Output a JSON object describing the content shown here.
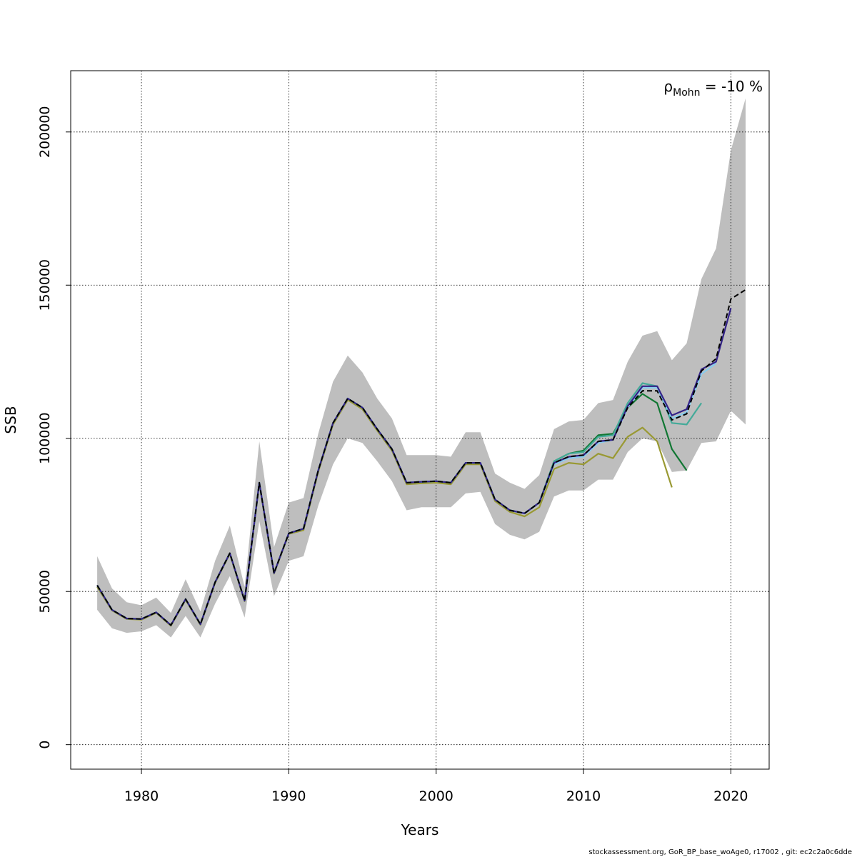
{
  "chart_data": {
    "type": "line",
    "title": "",
    "xlabel": "Years",
    "ylabel": "SSB",
    "xlim": [
      1975.2,
      2022.6
    ],
    "ylim": [
      -8000,
      220000
    ],
    "x_ticks": [
      1980,
      1990,
      2000,
      2010,
      2020
    ],
    "y_ticks": [
      0,
      50000,
      100000,
      150000,
      200000
    ],
    "x_tick_labels": [
      "1980",
      "1990",
      "2000",
      "2010",
      "2020"
    ],
    "y_tick_labels": [
      "0",
      "50000",
      "100000",
      "150000",
      "200000"
    ],
    "grid": true,
    "legend": "none",
    "annotation": {
      "rho": "ρ",
      "sub": "Mohn",
      "value": " = -10 %"
    },
    "caption": "stockassessment.org, GoR_BP_base_woAge0, r17002 , git: ec2c2a0c6dde",
    "colors": {
      "band": "#bebebe",
      "base": "#000000",
      "peel1": "#332288",
      "peel2": "#88ccee",
      "peel3": "#44aa99",
      "peel4": "#117733",
      "peel5": "#999933"
    },
    "confidence_band": {
      "x": [
        1977,
        1978,
        1979,
        1980,
        1981,
        1982,
        1983,
        1984,
        1985,
        1986,
        1987,
        1988,
        1989,
        1990,
        1991,
        1992,
        1993,
        1994,
        1995,
        1996,
        1997,
        1998,
        1999,
        2000,
        2001,
        2002,
        2003,
        2004,
        2005,
        2006,
        2007,
        2008,
        2009,
        2010,
        2011,
        2012,
        2013,
        2014,
        2015,
        2016,
        2017,
        2018,
        2019,
        2020,
        2021
      ],
      "lower": [
        44000,
        38000,
        36500,
        37000,
        39000,
        35000,
        42000,
        35000,
        46000,
        55000,
        41500,
        73000,
        48500,
        60000,
        61500,
        78000,
        91500,
        100000,
        98500,
        92500,
        86000,
        76500,
        77500,
        77500,
        77500,
        82000,
        82500,
        72000,
        68500,
        67000,
        69500,
        81000,
        83000,
        83000,
        86500,
        86500,
        95500,
        100000,
        99000,
        89000,
        89500,
        98500,
        99000,
        109000,
        104500
      ],
      "upper": [
        61500,
        51000,
        46500,
        45500,
        48000,
        43000,
        54000,
        43500,
        60000,
        71500,
        51500,
        99000,
        64500,
        79000,
        80500,
        101500,
        118500,
        127000,
        121500,
        113000,
        106500,
        94500,
        94500,
        94500,
        94000,
        102000,
        102000,
        88500,
        85500,
        83500,
        88000,
        103000,
        105500,
        106000,
        111500,
        112500,
        125000,
        133500,
        135000,
        125500,
        131000,
        152000,
        162000,
        194000,
        211000
      ]
    },
    "series": [
      {
        "key": "base",
        "dashed": true,
        "x": [
          1977,
          1978,
          1979,
          1980,
          1981,
          1982,
          1983,
          1984,
          1985,
          1986,
          1987,
          1988,
          1989,
          1990,
          1991,
          1992,
          1993,
          1994,
          1995,
          1996,
          1997,
          1998,
          1999,
          2000,
          2001,
          2002,
          2003,
          2004,
          2005,
          2006,
          2007,
          2008,
          2009,
          2010,
          2011,
          2012,
          2013,
          2014,
          2015,
          2016,
          2017,
          2018,
          2019,
          2020,
          2021
        ],
        "values": [
          52000,
          44000,
          41200,
          41000,
          43200,
          39000,
          47500,
          39300,
          53000,
          62500,
          47000,
          85500,
          56000,
          69000,
          70500,
          89500,
          105000,
          113000,
          110000,
          103000,
          96500,
          85500,
          85800,
          86000,
          85500,
          92000,
          92000,
          80000,
          76500,
          75500,
          79000,
          92000,
          94000,
          94500,
          99000,
          99500,
          110000,
          115500,
          115500,
          106000,
          108000,
          122000,
          126000,
          145500,
          148500
        ]
      },
      {
        "key": "peel1",
        "dashed": false,
        "x": [
          1977,
          1978,
          1979,
          1980,
          1981,
          1982,
          1983,
          1984,
          1985,
          1986,
          1987,
          1988,
          1989,
          1990,
          1991,
          1992,
          1993,
          1994,
          1995,
          1996,
          1997,
          1998,
          1999,
          2000,
          2001,
          2002,
          2003,
          2004,
          2005,
          2006,
          2007,
          2008,
          2009,
          2010,
          2011,
          2012,
          2013,
          2014,
          2015,
          2016,
          2017,
          2018,
          2019,
          2020
        ],
        "values": [
          52000,
          44000,
          41200,
          41000,
          43200,
          39000,
          47500,
          39300,
          53000,
          62500,
          47000,
          85500,
          56000,
          69000,
          70500,
          89500,
          105000,
          113000,
          110000,
          103000,
          96500,
          85500,
          85800,
          86000,
          85500,
          92000,
          92000,
          80000,
          76500,
          75500,
          79000,
          92000,
          94000,
          94500,
          99000,
          99500,
          110500,
          117000,
          117000,
          107500,
          109500,
          122500,
          125000,
          142500
        ]
      },
      {
        "key": "peel2",
        "dashed": false,
        "x": [
          1977,
          1978,
          1979,
          1980,
          1981,
          1982,
          1983,
          1984,
          1985,
          1986,
          1987,
          1988,
          1989,
          1990,
          1991,
          1992,
          1993,
          1994,
          1995,
          1996,
          1997,
          1998,
          1999,
          2000,
          2001,
          2002,
          2003,
          2004,
          2005,
          2006,
          2007,
          2008,
          2009,
          2010,
          2011,
          2012,
          2013,
          2014,
          2015,
          2016,
          2017,
          2018,
          2019
        ],
        "values": [
          52000,
          44000,
          41200,
          41000,
          43200,
          39000,
          47500,
          39300,
          53000,
          62500,
          47000,
          85500,
          56000,
          69000,
          70500,
          89500,
          105000,
          113000,
          110000,
          103000,
          96500,
          85500,
          85800,
          86000,
          85500,
          92000,
          92000,
          80000,
          76500,
          75500,
          79000,
          91500,
          93500,
          94000,
          98500,
          99500,
          110000,
          116500,
          116500,
          106500,
          108500,
          121000,
          124500
        ]
      },
      {
        "key": "peel3",
        "dashed": false,
        "x": [
          1977,
          1978,
          1979,
          1980,
          1981,
          1982,
          1983,
          1984,
          1985,
          1986,
          1987,
          1988,
          1989,
          1990,
          1991,
          1992,
          1993,
          1994,
          1995,
          1996,
          1997,
          1998,
          1999,
          2000,
          2001,
          2002,
          2003,
          2004,
          2005,
          2006,
          2007,
          2008,
          2009,
          2010,
          2011,
          2012,
          2013,
          2014,
          2015,
          2016,
          2017,
          2018
        ],
        "values": [
          52000,
          44000,
          41200,
          41000,
          43200,
          39000,
          47500,
          39300,
          53000,
          62500,
          47000,
          85500,
          56000,
          69000,
          70500,
          89500,
          105000,
          113000,
          110000,
          103000,
          96500,
          85500,
          85800,
          86000,
          85500,
          92000,
          92000,
          80000,
          76500,
          75500,
          79000,
          92500,
          95000,
          95500,
          100500,
          101000,
          111500,
          118000,
          117000,
          105000,
          104500,
          111500
        ]
      },
      {
        "key": "peel4",
        "dashed": false,
        "x": [
          1977,
          1978,
          1979,
          1980,
          1981,
          1982,
          1983,
          1984,
          1985,
          1986,
          1987,
          1988,
          1989,
          1990,
          1991,
          1992,
          1993,
          1994,
          1995,
          1996,
          1997,
          1998,
          1999,
          2000,
          2001,
          2002,
          2003,
          2004,
          2005,
          2006,
          2007,
          2008,
          2009,
          2010,
          2011,
          2012,
          2013,
          2014,
          2015,
          2016,
          2017
        ],
        "values": [
          52000,
          44000,
          41200,
          41000,
          43200,
          39000,
          47500,
          39300,
          53000,
          62500,
          47000,
          85500,
          56000,
          69000,
          70500,
          89500,
          105000,
          113000,
          110000,
          103000,
          96500,
          85500,
          85800,
          86000,
          85500,
          92000,
          92000,
          80000,
          76500,
          75500,
          79000,
          92500,
          95000,
          96000,
          101000,
          101500,
          110000,
          114500,
          111500,
          96500,
          89500
        ]
      },
      {
        "key": "peel5",
        "dashed": false,
        "x": [
          1977,
          1978,
          1979,
          1980,
          1981,
          1982,
          1983,
          1984,
          1985,
          1986,
          1987,
          1988,
          1989,
          1990,
          1991,
          1992,
          1993,
          1994,
          1995,
          1996,
          1997,
          1998,
          1999,
          2000,
          2001,
          2002,
          2003,
          2004,
          2005,
          2006,
          2007,
          2008,
          2009,
          2010,
          2011,
          2012,
          2013,
          2014,
          2015,
          2016
        ],
        "values": [
          51500,
          43800,
          41000,
          40800,
          43000,
          38800,
          47300,
          39100,
          52800,
          62300,
          46800,
          85300,
          55800,
          68800,
          70000,
          89000,
          104500,
          112500,
          109500,
          102500,
          96000,
          85000,
          85300,
          85500,
          85000,
          91500,
          91500,
          79500,
          76000,
          74500,
          77500,
          90000,
          92000,
          91500,
          95000,
          93500,
          100500,
          103500,
          99000,
          84000
        ]
      }
    ]
  }
}
